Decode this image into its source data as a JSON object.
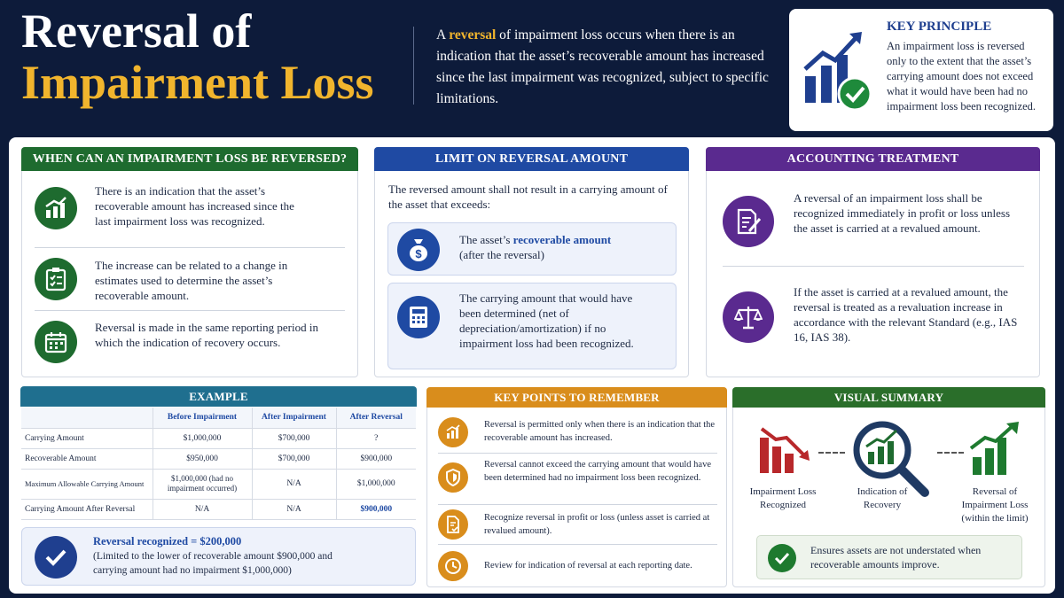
{
  "header": {
    "title_line1": "Reversal of",
    "title_line2": "Impairment Loss",
    "intro_pre": "A ",
    "intro_highlight": "reversal",
    "intro_post": " of impairment loss occurs when there is an indication that the asset’s recoverable amount has increased since the last impairment was recognized, subject to specific limitations."
  },
  "key_principle": {
    "title": "KEY PRINCIPLE",
    "text": "An impairment loss is reversed only to the extent that the asset’s carrying amount does not exceed what it would have been had no impairment loss been recognized."
  },
  "when_card": {
    "title": "WHEN CAN AN IMPAIRMENT LOSS BE REVERSED?",
    "items": [
      {
        "icon": "chart-up-icon",
        "text": "There is an indication that the asset’s recoverable amount has increased since the last impairment loss was recognized."
      },
      {
        "icon": "clipboard-check-icon",
        "text": "The increase can be related to a change in estimates used to determine the asset’s recoverable amount."
      },
      {
        "icon": "calendar-icon",
        "text": "Reversal is made in the same reporting period in which the indication of recovery occurs."
      }
    ]
  },
  "limit_card": {
    "title": "LIMIT ON REVERSAL AMOUNT",
    "intro": "The reversed amount shall not result in a carrying amount of the asset that exceeds:",
    "box1_pre": "The asset’s ",
    "box1_highlight": "recoverable amount",
    "box1_post": "(after the reversal)",
    "box2_text": "The carrying amount that would have been determined (net of depreciation/amortization) if no impairment loss had been recognized."
  },
  "accounting_card": {
    "title": "ACCOUNTING TREATMENT",
    "items": [
      {
        "icon": "document-pen-icon",
        "text": "A reversal of an impairment loss shall be recognized immediately in profit or loss unless the asset is carried at a revalued amount."
      },
      {
        "icon": "scales-icon",
        "text": "If the asset is carried at a revalued amount, the reversal is treated as a revaluation increase in accordance with the relevant Standard (e.g., IAS 16, IAS 38)."
      }
    ]
  },
  "example": {
    "title": "EXAMPLE",
    "columns": [
      "",
      "Before Impairment",
      "After Impairment",
      "After Reversal"
    ],
    "rows": [
      [
        "Carrying Amount",
        "$1,000,000",
        "$700,000",
        "?"
      ],
      [
        "Recoverable Amount",
        "$950,000",
        "$700,000",
        "$900,000"
      ],
      [
        "Maximum Allowable Carrying Amount",
        "$1,000,000 (had no impairment occurred)",
        "N/A",
        "$1,000,000"
      ],
      [
        "Carrying Amount After Reversal",
        "N/A",
        "N/A",
        "$900,000"
      ]
    ],
    "result_title": "Reversal recognized = $200,000",
    "result_text": "(Limited to the lower of recoverable amount $900,000 and carrying amount had no impairment $1,000,000)"
  },
  "key_points": {
    "title": "KEY POINTS TO REMEMBER",
    "items": [
      {
        "icon": "chart-up-icon",
        "text": "Reversal is permitted only when there is an indication that the recoverable amount has increased."
      },
      {
        "icon": "shield-icon",
        "text": "Reversal cannot exceed the carrying amount that would have been determined had no impairment loss been recognized."
      },
      {
        "icon": "document-check-icon",
        "text": "Recognize reversal in profit or loss (unless asset is carried at revalued amount)."
      },
      {
        "icon": "clock-icon",
        "text": "Review for indication of reversal at each reporting date."
      }
    ]
  },
  "visual_summary": {
    "title": "VISUAL SUMMARY",
    "steps": [
      "Impairment Loss Recognized",
      "Indication of Recovery",
      "Reversal of Impairment Loss (within the limit)"
    ],
    "note": "Ensures assets are not understated when recoverable amounts improve."
  },
  "colors": {
    "navy": "#0d1b3a",
    "gold": "#f1b52d",
    "green": "#1e6b2f",
    "blue": "#1f4aa3",
    "purple": "#5a2a8f",
    "teal": "#1f6f8f",
    "orange": "#d98d1c",
    "red": "#c0393b"
  }
}
